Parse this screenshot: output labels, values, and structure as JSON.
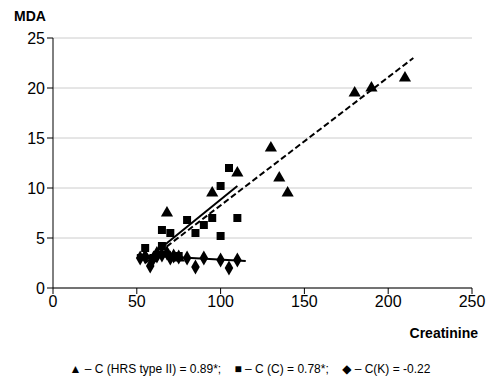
{
  "chart_data": {
    "type": "scatter",
    "y_label": "MDA",
    "x_label": "Creatinine",
    "xlim": [
      0,
      250
    ],
    "ylim": [
      0,
      25
    ],
    "xticks": [
      0,
      50,
      100,
      150,
      200,
      250
    ],
    "yticks": [
      0,
      5,
      10,
      15,
      20,
      25
    ],
    "grid": "y",
    "legend": "bottom",
    "color": "#000000",
    "series": [
      {
        "name": "▲ – C (HRS type II) = 0.89*;",
        "type": "scatter",
        "marker": "triangle",
        "x": [
          55,
          62,
          68,
          75,
          95,
          110,
          130,
          135,
          140,
          180,
          190,
          210
        ],
        "values": [
          3.2,
          3.5,
          7.5,
          3.0,
          9.5,
          11.5,
          14.0,
          11.0,
          9.5,
          19.5,
          20.0,
          21.0
        ]
      },
      {
        "name": "■ – C (C) = 0.78*;",
        "type": "scatter",
        "marker": "square",
        "x": [
          55,
          60,
          65,
          65,
          70,
          75,
          80,
          85,
          90,
          95,
          100,
          100,
          105,
          110
        ],
        "values": [
          4.0,
          3.0,
          4.2,
          5.8,
          5.5,
          3.2,
          6.8,
          5.5,
          6.3,
          7.0,
          10.2,
          5.2,
          12.0,
          7.0
        ]
      },
      {
        "name": "◆ – C(K) = -0.22",
        "type": "scatter",
        "marker": "diamond",
        "x": [
          52,
          55,
          58,
          60,
          62,
          65,
          68,
          70,
          72,
          75,
          80,
          85,
          90,
          100,
          105,
          110
        ],
        "values": [
          3.0,
          3.1,
          2.2,
          3.0,
          3.2,
          3.3,
          3.5,
          3.0,
          3.2,
          3.1,
          3.0,
          2.1,
          3.0,
          2.8,
          2.0,
          2.8
        ]
      },
      {
        "type": "line",
        "line_style": "dashed",
        "x": [
          55,
          215
        ],
        "values": [
          2.5,
          23.0
        ]
      },
      {
        "type": "line",
        "line_style": "solid",
        "x": [
          57,
          110
        ],
        "values": [
          3.0,
          10.2
        ]
      },
      {
        "type": "line",
        "line_style": "solid",
        "x": [
          50,
          115
        ],
        "values": [
          3.3,
          2.7
        ]
      }
    ]
  }
}
